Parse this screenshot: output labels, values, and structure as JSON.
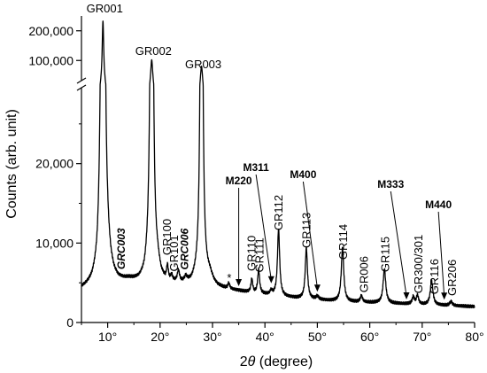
{
  "chart_data": {
    "type": "line",
    "xlabel": "2θ (degree)",
    "ylabel": "Counts (arb. unit)",
    "xlim": [
      5,
      80
    ],
    "ylim_lower": [
      0,
      30000
    ],
    "ylim_upper": [
      50000,
      250000
    ],
    "axis_break": true,
    "grid": false,
    "x_ticks": [
      10,
      20,
      30,
      40,
      50,
      60,
      70,
      80
    ],
    "x_tick_labels": [
      "10°",
      "20°",
      "30°",
      "40°",
      "50°",
      "60°",
      "70°",
      "80°"
    ],
    "y_ticks_lower": [
      0,
      10000,
      20000
    ],
    "y_tick_labels_lower": [
      "0",
      "10,000",
      "20,000"
    ],
    "y_ticks_upper": [
      100000,
      200000
    ],
    "y_tick_labels_upper": [
      "100,000",
      "200,000"
    ],
    "baseline": [
      [
        5,
        4200
      ],
      [
        6,
        4450
      ],
      [
        7,
        4800
      ],
      [
        8,
        5700
      ],
      [
        8.5,
        7500
      ],
      [
        10,
        8000
      ],
      [
        10.6,
        6400
      ],
      [
        11.2,
        5600
      ],
      [
        12,
        5200
      ],
      [
        13,
        5200
      ],
      [
        14,
        5300
      ],
      [
        15,
        5200
      ],
      [
        16,
        5200
      ],
      [
        17,
        5600
      ],
      [
        17.8,
        7200
      ],
      [
        19.5,
        7000
      ],
      [
        20.2,
        5600
      ],
      [
        21,
        5000
      ],
      [
        22,
        4900
      ],
      [
        23,
        4850
      ],
      [
        24,
        4800
      ],
      [
        25,
        4850
      ],
      [
        26,
        4900
      ],
      [
        27,
        5600
      ],
      [
        29.5,
        5800
      ],
      [
        30.3,
        4900
      ],
      [
        31,
        4500
      ],
      [
        32,
        4300
      ],
      [
        33,
        4150
      ],
      [
        34,
        4050
      ],
      [
        35,
        3950
      ],
      [
        36,
        3850
      ],
      [
        37,
        3750
      ],
      [
        38,
        3650
      ],
      [
        40,
        3500
      ],
      [
        42,
        3350
      ],
      [
        44,
        3200
      ],
      [
        46,
        3050
      ],
      [
        48,
        2950
      ],
      [
        50,
        2850
      ],
      [
        52,
        2750
      ],
      [
        54,
        2650
      ],
      [
        56,
        2600
      ],
      [
        58,
        2550
      ],
      [
        60,
        2500
      ],
      [
        62,
        2450
      ],
      [
        64,
        2400
      ],
      [
        66,
        2350
      ],
      [
        68,
        2300
      ],
      [
        70,
        2250
      ],
      [
        72,
        2200
      ],
      [
        74,
        2150
      ],
      [
        76,
        2100
      ],
      [
        78,
        2050
      ],
      [
        80,
        2000
      ]
    ],
    "peaks": [
      {
        "x": 9.1,
        "h": 225000,
        "w": 0.18
      },
      {
        "x": 18.4,
        "h": 95000,
        "w": 0.22
      },
      {
        "x": 21.4,
        "h": 1800,
        "w": 0.2
      },
      {
        "x": 22.2,
        "h": 700,
        "w": 0.2
      },
      {
        "x": 23.5,
        "h": 1400,
        "w": 0.25
      },
      {
        "x": 24.9,
        "h": 600,
        "w": 0.3
      },
      {
        "x": 27.9,
        "h": 75000,
        "w": 0.22
      },
      {
        "x": 33.1,
        "h": 700,
        "w": 0.2
      },
      {
        "x": 37.5,
        "h": 1700,
        "w": 0.2
      },
      {
        "x": 38.8,
        "h": 3000,
        "w": 0.22
      },
      {
        "x": 41.2,
        "h": 500,
        "w": 0.25
      },
      {
        "x": 42.6,
        "h": 8400,
        "w": 0.25
      },
      {
        "x": 47.9,
        "h": 6400,
        "w": 0.25
      },
      {
        "x": 50.0,
        "h": 400,
        "w": 0.3
      },
      {
        "x": 54.8,
        "h": 6700,
        "w": 0.28
      },
      {
        "x": 58.4,
        "h": 800,
        "w": 0.25
      },
      {
        "x": 62.8,
        "h": 4300,
        "w": 0.3
      },
      {
        "x": 68.3,
        "h": 900,
        "w": 0.25
      },
      {
        "x": 69.1,
        "h": 1100,
        "w": 0.25
      },
      {
        "x": 71.8,
        "h": 3000,
        "w": 0.3
      },
      {
        "x": 75.5,
        "h": 500,
        "w": 0.3
      }
    ],
    "annotations": [
      {
        "text": "GR001",
        "x": 9.1,
        "style": "normal"
      },
      {
        "text": "GR002",
        "x": 18.4,
        "style": "normal"
      },
      {
        "text": "GR003",
        "x": 27.9,
        "style": "normal"
      },
      {
        "text": "GRC003",
        "x": 12.6,
        "style": "italic"
      },
      {
        "text": "GR100",
        "x": 21.4,
        "style": "normal"
      },
      {
        "text": "GR101",
        "x": 22.7,
        "style": "normal"
      },
      {
        "text": "GRC006",
        "x": 24.7,
        "style": "italic"
      },
      {
        "text": "GR110",
        "x": 37.5,
        "style": "normal"
      },
      {
        "text": "GR111",
        "x": 39.0,
        "style": "normal"
      },
      {
        "text": "GR112",
        "x": 42.7,
        "style": "normal"
      },
      {
        "text": "GR113",
        "x": 48.0,
        "style": "normal"
      },
      {
        "text": "GR114",
        "x": 55.0,
        "style": "normal"
      },
      {
        "text": "GR006",
        "x": 59.0,
        "style": "normal"
      },
      {
        "text": "GR115",
        "x": 63.0,
        "style": "normal"
      },
      {
        "text": "GR300/301",
        "x": 69.4,
        "style": "normal"
      },
      {
        "text": "GR116",
        "x": 72.4,
        "style": "normal"
      },
      {
        "text": "GR206",
        "x": 75.8,
        "style": "normal"
      }
    ],
    "arrow_annotations": [
      {
        "text": "M220",
        "x": 35.0
      },
      {
        "text": "M311",
        "x": 41.2
      },
      {
        "text": "M400",
        "x": 50.0
      },
      {
        "text": "M333",
        "x": 67.0
      },
      {
        "text": "M440",
        "x": 74.2
      }
    ],
    "markers": [
      {
        "text": "*",
        "x": 33.2
      }
    ]
  }
}
